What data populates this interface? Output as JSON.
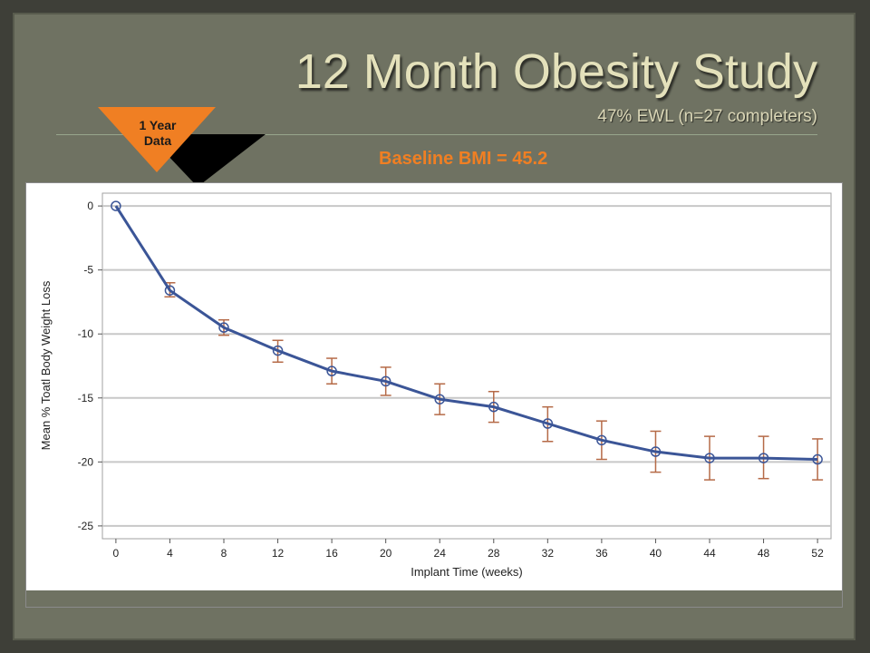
{
  "slide": {
    "title": "12 Month Obesity Study",
    "subtitle": "47% EWL (n=27 completers)",
    "badge_line1": "1 Year",
    "badge_line2": "Data",
    "baseline_text": "Baseline BMI = 45.2",
    "colors": {
      "background": "#6f7262",
      "title": "#e4e1bb",
      "badge_fill": "#f07f23",
      "baseline_text": "#f07f23"
    }
  },
  "chart_data": {
    "type": "line",
    "xlabel": "Implant Time (weeks)",
    "ylabel": "Mean % Toatl Body Weight Loss",
    "x": [
      0,
      4,
      8,
      12,
      16,
      20,
      24,
      28,
      32,
      36,
      40,
      44,
      48,
      52
    ],
    "series": [
      {
        "values": [
          0,
          -6.6,
          -9.5,
          -11.3,
          -12.9,
          -13.7,
          -15.1,
          -15.7,
          -17.0,
          -18.3,
          -19.2,
          -19.7,
          -19.7,
          -19.8
        ],
        "error_upper": [
          0,
          -6.0,
          -8.9,
          -10.5,
          -11.9,
          -12.6,
          -13.9,
          -14.5,
          -15.7,
          -16.8,
          -17.6,
          -18.0,
          -18.0,
          -18.2
        ],
        "error_lower": [
          0,
          -7.1,
          -10.1,
          -12.2,
          -13.9,
          -14.8,
          -16.3,
          -16.9,
          -18.4,
          -19.8,
          -20.8,
          -21.4,
          -21.3,
          -21.4
        ],
        "color": "#3b5597",
        "error_color": "#b56a47"
      }
    ],
    "xticks": [
      0,
      4,
      8,
      12,
      16,
      20,
      24,
      28,
      32,
      36,
      40,
      44,
      48,
      52
    ],
    "yticks": [
      0,
      -5,
      -10,
      -15,
      -20,
      -25
    ],
    "xlim": [
      -1,
      53
    ],
    "ylim": [
      -26,
      1
    ],
    "grid": true
  }
}
